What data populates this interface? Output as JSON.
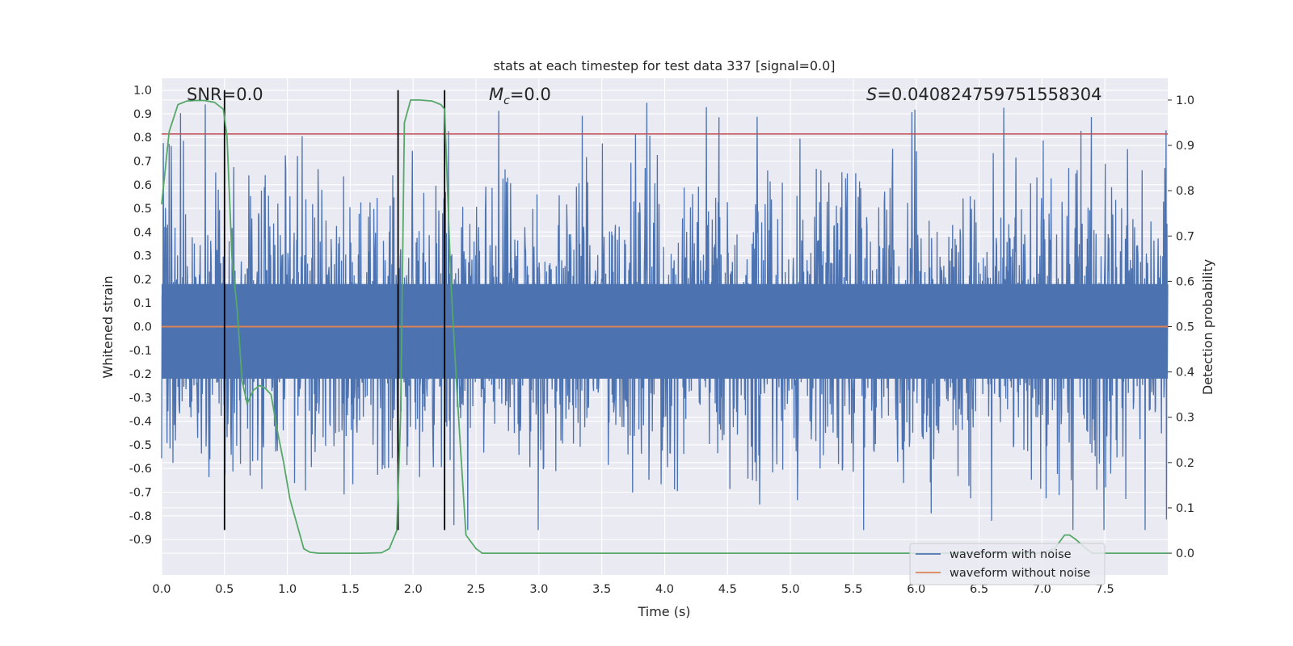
{
  "chart_data": {
    "type": "line",
    "title": "stats at each timestep for test data 337 [signal=0.0]",
    "xlabel": "Time (s)",
    "ylabel": "Whitened strain",
    "ylabel_right": "Detection probability",
    "xlim": [
      0.0,
      8.0
    ],
    "ylim": [
      -1.05,
      1.05
    ],
    "ylim_right": [
      -0.048,
      1.048
    ],
    "x_ticks": [
      "0.0",
      "0.5",
      "1.0",
      "1.5",
      "2.0",
      "2.5",
      "3.0",
      "3.5",
      "4.0",
      "4.5",
      "5.0",
      "5.5",
      "6.0",
      "6.5",
      "7.0",
      "7.5"
    ],
    "y_ticks": [
      "1.0",
      "0.9",
      "0.8",
      "0.7",
      "0.6",
      "0.5",
      "0.4",
      "0.3",
      "0.2",
      "0.1",
      "0.0",
      "-0.1",
      "-0.2",
      "-0.3",
      "-0.4",
      "-0.5",
      "-0.6",
      "-0.7",
      "-0.8",
      "-0.9"
    ],
    "y_ticks_right": [
      "1.0",
      "0.9",
      "0.8",
      "0.7",
      "0.6",
      "0.5",
      "0.4",
      "0.3",
      "0.2",
      "0.1",
      "0.0"
    ],
    "grid": true,
    "legend_position": "lower right",
    "annotations": [
      {
        "prefix": "SNR",
        "text": "=0.0"
      },
      {
        "prefix": "M",
        "sub": "c",
        "text": "=0.0"
      },
      {
        "prefix": "S",
        "text": "=0.04082475975155830​4"
      }
    ],
    "series": [
      {
        "name": "waveform with noise",
        "color": "#4c72b0",
        "axis": "left",
        "kind": "noise",
        "y_range": [
          -0.86,
          1.0
        ]
      },
      {
        "name": "waveform without noise",
        "color": "#dd8452",
        "axis": "left",
        "x": [
          0.0,
          8.0
        ],
        "y": [
          0.0,
          0.0
        ]
      },
      {
        "color": "#55a868",
        "axis": "right",
        "x": [
          0.0,
          0.06,
          0.13,
          0.2,
          0.27,
          0.34,
          0.42,
          0.49,
          0.52,
          0.56,
          0.6,
          0.64,
          0.68,
          0.73,
          0.78,
          0.82,
          0.87,
          0.92,
          0.97,
          1.02,
          1.08,
          1.13,
          1.18,
          1.25,
          1.4,
          1.6,
          1.75,
          1.81,
          1.84,
          1.87,
          1.9,
          1.93,
          1.98,
          2.05,
          2.15,
          2.22,
          2.25,
          2.3,
          2.35,
          2.42,
          2.5,
          2.55,
          2.6,
          3.0,
          4.0,
          5.0,
          6.0,
          7.0,
          7.1,
          7.18,
          7.22,
          7.27,
          7.33,
          7.4,
          7.5,
          8.0
        ],
        "y": [
          0.77,
          0.93,
          0.99,
          0.998,
          0.999,
          0.999,
          0.995,
          0.98,
          0.92,
          0.65,
          0.54,
          0.38,
          0.33,
          0.36,
          0.37,
          0.365,
          0.35,
          0.27,
          0.2,
          0.12,
          0.06,
          0.01,
          0.002,
          0.0,
          0.0,
          0.0,
          0.001,
          0.01,
          0.03,
          0.05,
          0.3,
          0.95,
          1.0,
          1.0,
          0.998,
          0.99,
          0.98,
          0.6,
          0.35,
          0.04,
          0.01,
          0.0,
          0.0,
          0.0,
          0.0,
          0.0,
          0.0,
          0.0,
          0.01,
          0.04,
          0.04,
          0.03,
          0.015,
          0.0,
          0.0,
          0.0
        ]
      },
      {
        "color": "#c44e52",
        "axis": "left",
        "x": [
          0.0,
          8.0
        ],
        "y": [
          0.815,
          0.815
        ]
      }
    ],
    "vlines": [
      0.5,
      1.88,
      2.25
    ],
    "vlines_range": [
      -0.86,
      1.0
    ],
    "vline_color": "#000000"
  },
  "colors": {
    "background": "#eaeaf2",
    "grid": "#ffffff",
    "text": "#262626"
  }
}
